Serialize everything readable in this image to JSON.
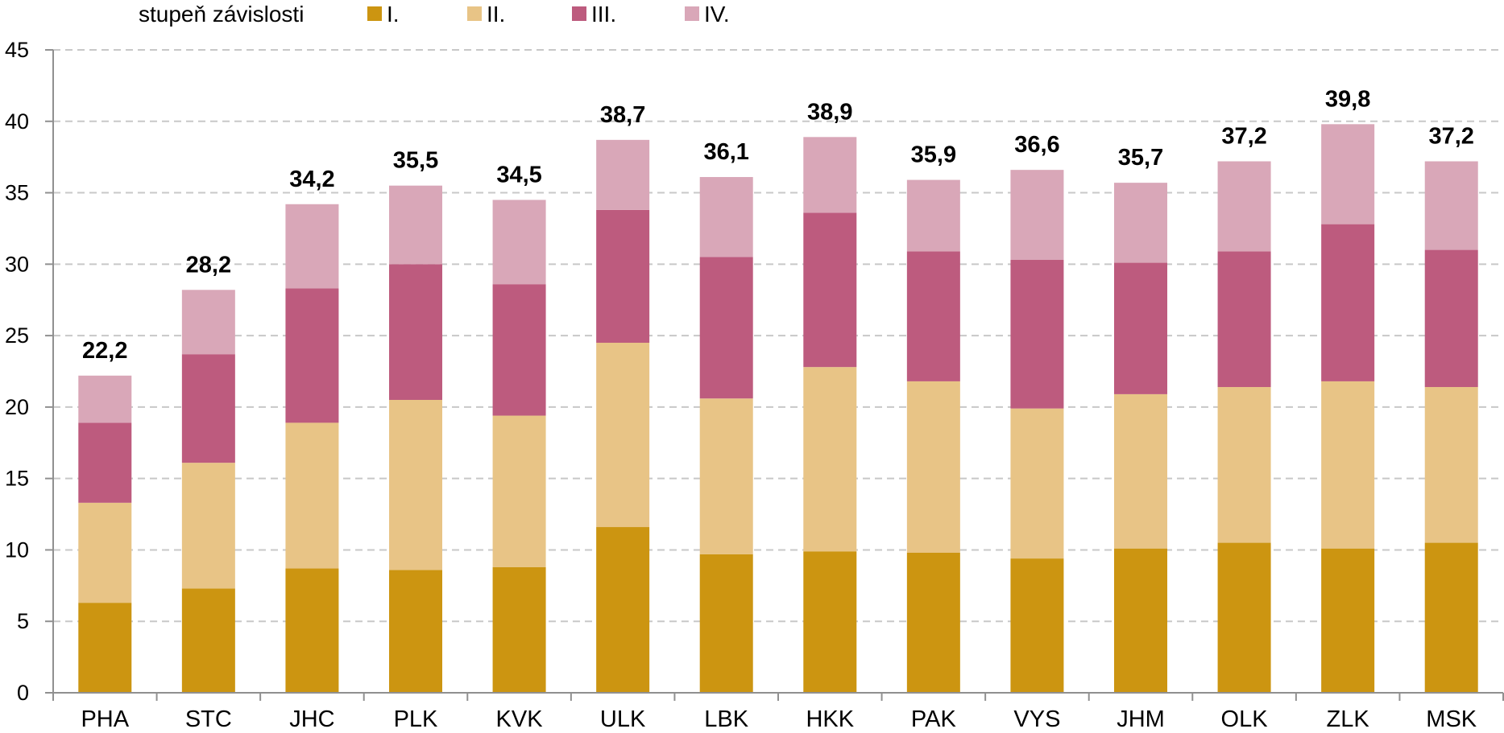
{
  "chart_data": {
    "type": "bar",
    "stacked": true,
    "legend_title": "stupeň závislosti",
    "legend_placement": "top-left",
    "categories": [
      "PHA",
      "STC",
      "JHC",
      "PLK",
      "KVK",
      "ULK",
      "LBK",
      "HKK",
      "PAK",
      "VYS",
      "JHM",
      "OLK",
      "ZLK",
      "MSK"
    ],
    "series": [
      {
        "name": "I.",
        "color": "#CC9511",
        "values": [
          6.3,
          7.3,
          8.7,
          8.6,
          8.8,
          11.6,
          9.7,
          9.9,
          9.8,
          9.4,
          10.1,
          10.5,
          10.1,
          10.5
        ]
      },
      {
        "name": "II.",
        "color": "#E8C486",
        "values": [
          7.0,
          8.8,
          10.2,
          11.9,
          10.6,
          12.9,
          10.9,
          12.9,
          12.0,
          10.5,
          10.8,
          10.9,
          11.7,
          10.9
        ]
      },
      {
        "name": "III.",
        "color": "#BD5B7E",
        "values": [
          5.6,
          7.6,
          9.4,
          9.5,
          9.2,
          9.3,
          9.9,
          10.8,
          9.1,
          10.4,
          9.2,
          9.5,
          11.0,
          9.6
        ]
      },
      {
        "name": "IV.",
        "color": "#D9A7B8",
        "values": [
          3.3,
          4.5,
          5.9,
          5.5,
          5.9,
          4.9,
          5.6,
          5.3,
          5.0,
          6.3,
          5.6,
          6.3,
          7.0,
          6.2
        ]
      }
    ],
    "totals": [
      "22,2",
      "28,2",
      "34,2",
      "35,5",
      "34,5",
      "38,7",
      "36,1",
      "38,9",
      "35,9",
      "36,6",
      "35,7",
      "37,2",
      "39,8",
      "37,2"
    ],
    "ylim": [
      0,
      45
    ],
    "yticks": [
      0,
      5,
      10,
      15,
      20,
      25,
      30,
      35,
      40,
      45
    ],
    "grid": true
  }
}
